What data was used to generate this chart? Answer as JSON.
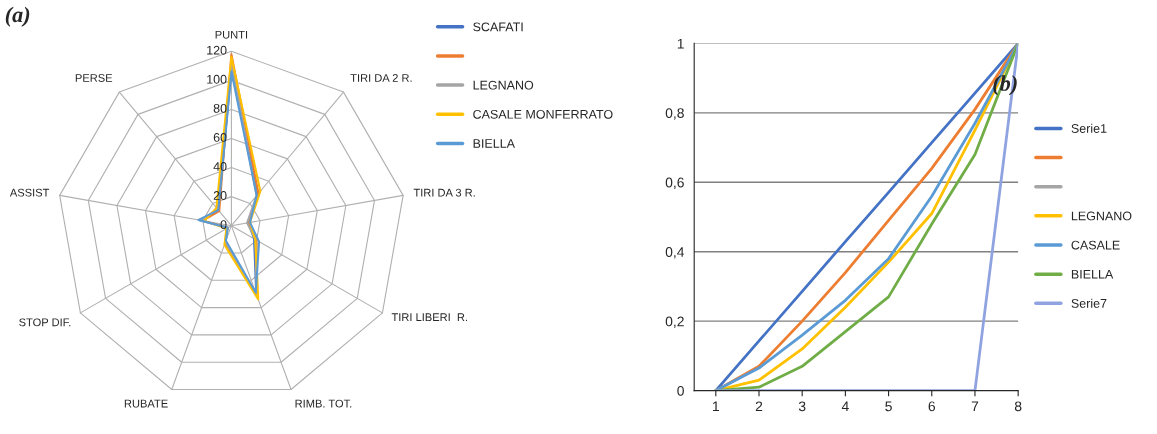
{
  "chart_data": [
    {
      "type": "radar",
      "title": "(a)",
      "categories": [
        "PUNTI",
        "TIRI DA 2 R.",
        "TIRI DA 3 R.",
        "TIRI LIBERI  R.",
        "RIMB. TOT.",
        "RUBATE",
        "STOP DIF.",
        "ASSIST",
        "PERSE"
      ],
      "ylim": [
        0,
        120
      ],
      "yticks": [
        0,
        20,
        40,
        60,
        80,
        100,
        120
      ],
      "legend": "right",
      "series": [
        {
          "name": "SCAFATI",
          "color": "#4472c4",
          "values": [
            108,
            28,
            12,
            18,
            50,
            12,
            3,
            22,
            14
          ]
        },
        {
          "color": "#ed7d31",
          "values": [
            118,
            29,
            12,
            20,
            52,
            13,
            3,
            20,
            13
          ]
        },
        {
          "name": "LEGNANO",
          "color": "#a5a5a5",
          "values": [
            112,
            27,
            11,
            19,
            51,
            12,
            3,
            21,
            15
          ]
        },
        {
          "name": "CASALE MONFERRATO",
          "color": "#ffc000",
          "values": [
            116,
            31,
            13,
            19,
            54,
            14,
            4,
            19,
            16
          ]
        },
        {
          "name": "BIELLA",
          "color": "#5b9bd5",
          "values": [
            106,
            27,
            13,
            22,
            49,
            11,
            3,
            23,
            14
          ]
        }
      ]
    },
    {
      "type": "line",
      "title": "(b)",
      "categories": [
        "1",
        "2",
        "3",
        "4",
        "5",
        "6",
        "7",
        "8"
      ],
      "ylim": [
        0,
        1
      ],
      "yticks": [
        {
          "value": 0,
          "label": "0"
        },
        {
          "value": 0.2,
          "label": "0,2"
        },
        {
          "value": 0.4,
          "label": "0,4"
        },
        {
          "value": 0.6,
          "label": "0,6"
        },
        {
          "value": 0.8,
          "label": "0,8"
        },
        {
          "value": 1,
          "label": "1"
        }
      ],
      "grid": "y",
      "legend": "right",
      "series": [
        {
          "name": "Serie1",
          "color": "#4472c4",
          "values": [
            0,
            0.143,
            0.286,
            0.429,
            0.571,
            0.714,
            0.857,
            1
          ]
        },
        {
          "color": "#ed7d31",
          "values": [
            0,
            0.07,
            0.2,
            0.34,
            0.49,
            0.64,
            0.81,
            1
          ]
        },
        {
          "color": "#a5a5a5",
          "values": [
            null,
            null,
            null,
            null,
            null,
            null,
            null,
            null
          ]
        },
        {
          "name": "LEGNANO",
          "color": "#ffc000",
          "values": [
            0,
            0.03,
            0.12,
            0.24,
            0.37,
            0.51,
            0.75,
            1
          ]
        },
        {
          "name": "CASALE",
          "color": "#5b9bd5",
          "values": [
            0,
            0.065,
            0.16,
            0.26,
            0.38,
            0.56,
            0.77,
            1
          ]
        },
        {
          "name": "BIELLA",
          "color": "#70ad47",
          "values": [
            0,
            0.01,
            0.07,
            0.17,
            0.27,
            0.48,
            0.68,
            1
          ]
        },
        {
          "name": "Serie7",
          "color": "#8fa3e0",
          "values": [
            0,
            0,
            0,
            0,
            0,
            0,
            0,
            1
          ]
        }
      ]
    }
  ]
}
